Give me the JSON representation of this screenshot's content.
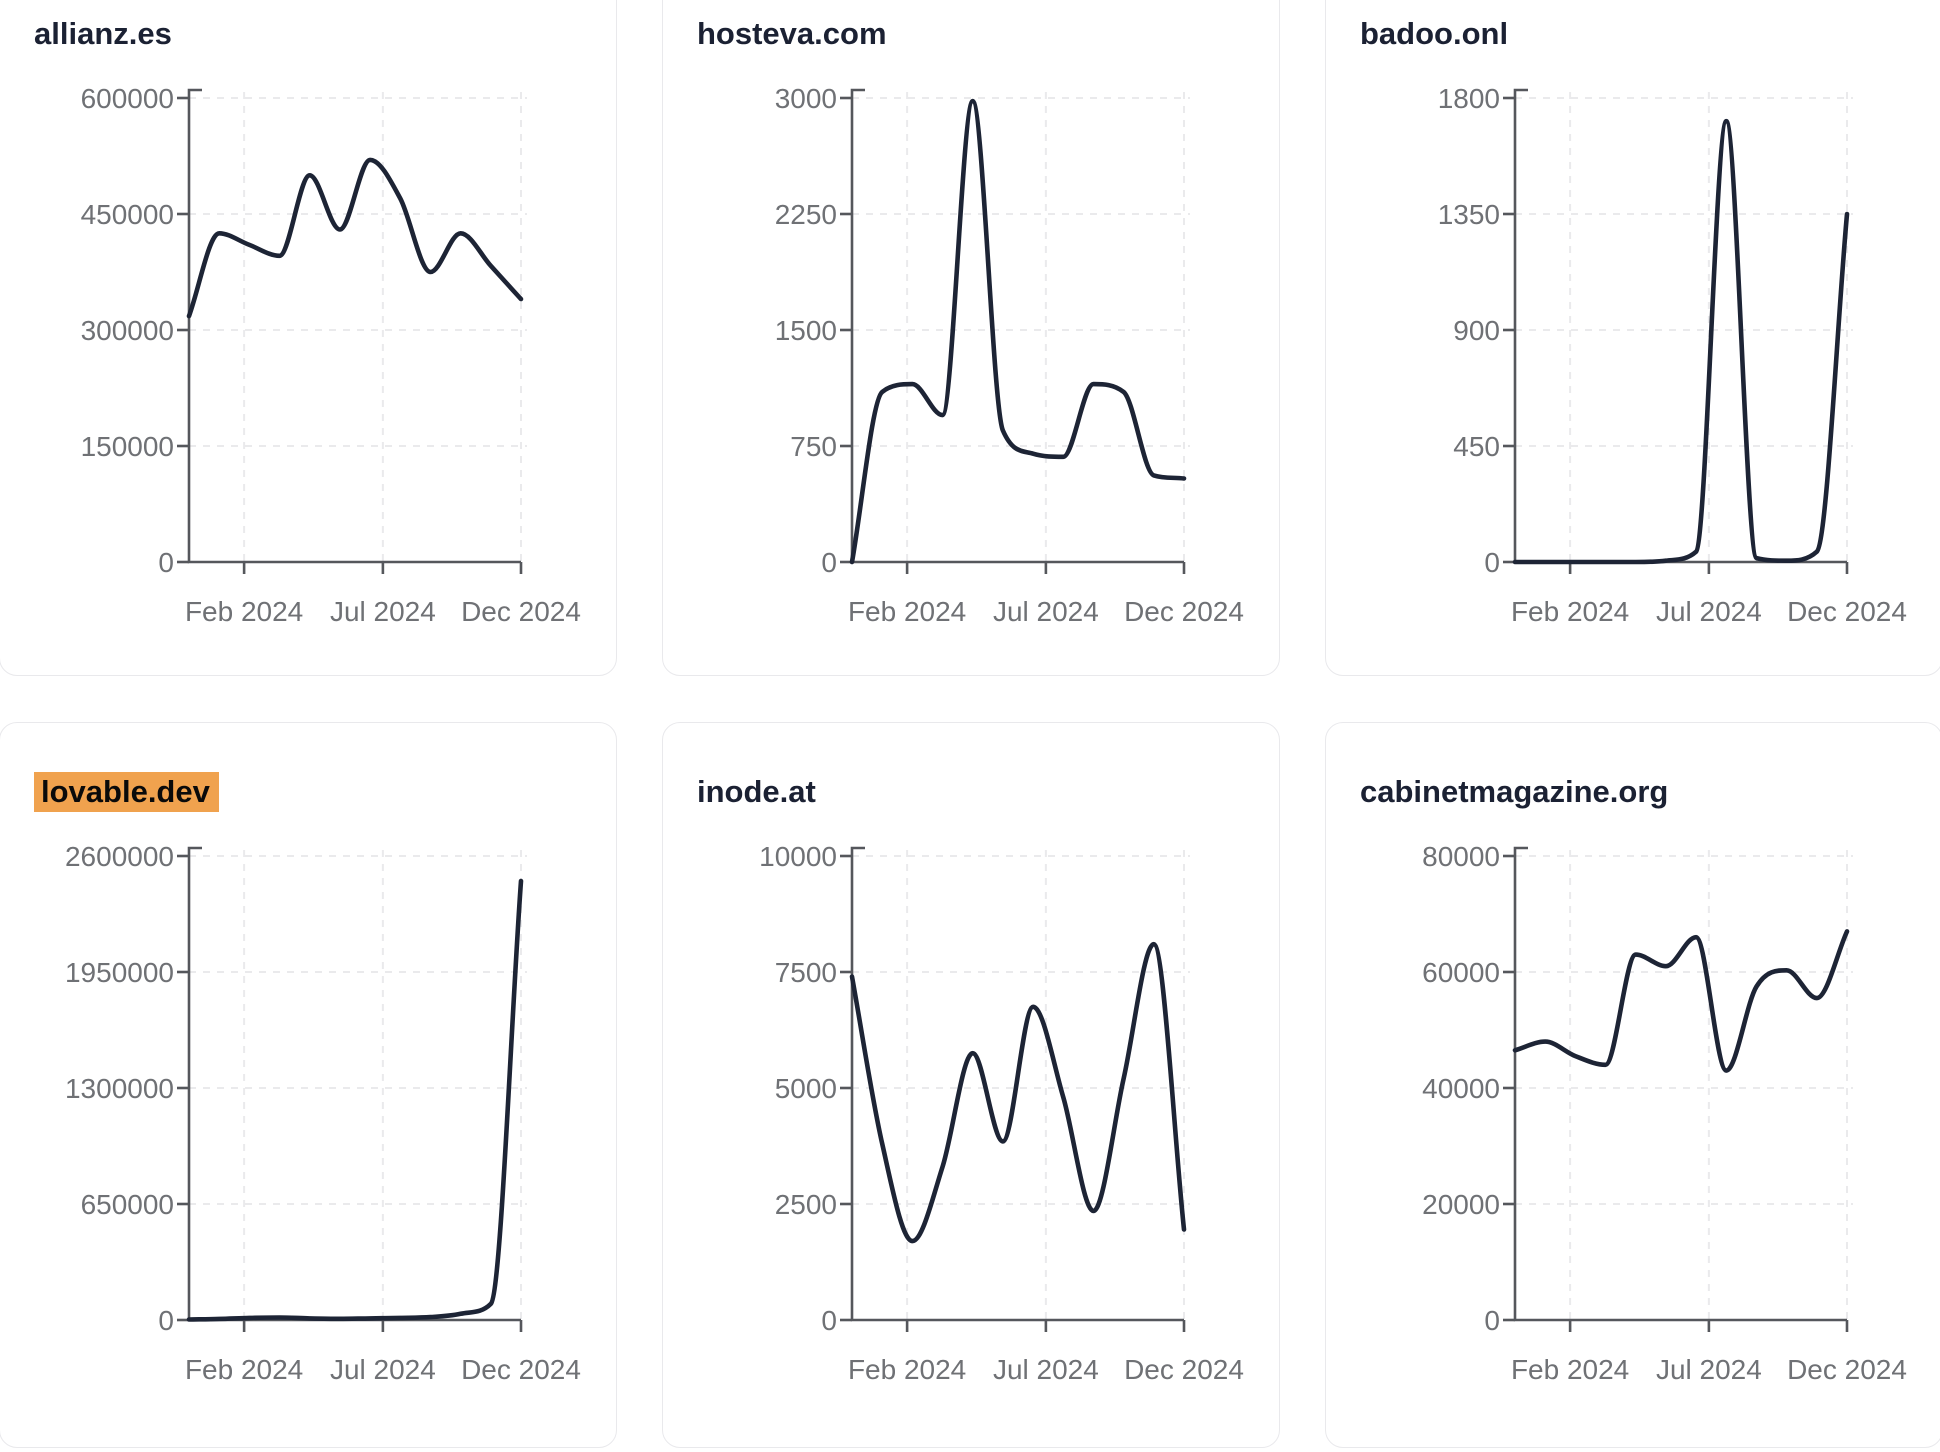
{
  "style": {
    "series_color": "#1d2435",
    "title_color": "#1b2133",
    "highlight_color": "#f0a24e",
    "grid_color": "#eaeaec",
    "axis_color": "#55575c",
    "label_color": "#6f7175",
    "card_background": "#ffffff",
    "card_border": "#e9e9ec"
  },
  "chart_data": [
    {
      "type": "line",
      "title": "allianz.es",
      "title_highlighted": false,
      "xlabel": "",
      "ylabel": "",
      "x": [
        "Jan 2024",
        "Feb 2024",
        "Mar 2024",
        "Apr 2024",
        "May 2024",
        "Jun 2024",
        "Jul 2024",
        "Aug 2024",
        "Sep 2024",
        "Oct 2024",
        "Nov 2024",
        "Dec 2024"
      ],
      "values": [
        318000,
        425000,
        410000,
        396000,
        500000,
        430000,
        520000,
        470000,
        375000,
        425000,
        383000,
        340000
      ],
      "ylim": [
        0,
        600000
      ],
      "yticks": [
        0,
        150000,
        300000,
        450000,
        600000
      ],
      "xtick_labels": [
        "Feb 2024",
        "Jul 2024",
        "Dec 2024"
      ],
      "grid": true,
      "legend": "none"
    },
    {
      "type": "line",
      "title": "hosteva.com",
      "title_highlighted": false,
      "xlabel": "",
      "ylabel": "",
      "x": [
        "Jan 2024",
        "Feb 2024",
        "Mar 2024",
        "Apr 2024",
        "May 2024",
        "Jun 2024",
        "Jul 2024",
        "Aug 2024",
        "Sep 2024",
        "Oct 2024",
        "Nov 2024",
        "Dec 2024"
      ],
      "values": [
        0,
        1100,
        1150,
        950,
        2980,
        850,
        700,
        680,
        1150,
        1100,
        560,
        540
      ],
      "ylim": [
        0,
        3000
      ],
      "yticks": [
        0,
        750,
        1500,
        2250,
        3000
      ],
      "xtick_labels": [
        "Feb 2024",
        "Jul 2024",
        "Dec 2024"
      ],
      "grid": true,
      "legend": "none"
    },
    {
      "type": "line",
      "title": "badoo.onl",
      "title_highlighted": false,
      "xlabel": "",
      "ylabel": "",
      "x": [
        "Jan 2024",
        "Feb 2024",
        "Mar 2024",
        "Apr 2024",
        "May 2024",
        "Jun 2024",
        "Jul 2024",
        "Aug 2024",
        "Sep 2024",
        "Oct 2024",
        "Nov 2024",
        "Dec 2024"
      ],
      "values": [
        0,
        0,
        0,
        0,
        0,
        5,
        40,
        1710,
        15,
        5,
        40,
        1350
      ],
      "ylim": [
        0,
        1800
      ],
      "yticks": [
        0,
        450,
        900,
        1350,
        1800
      ],
      "xtick_labels": [
        "Feb 2024",
        "Jul 2024",
        "Dec 2024"
      ],
      "grid": true,
      "legend": "none"
    },
    {
      "type": "line",
      "title": "lovable.dev",
      "title_highlighted": true,
      "xlabel": "",
      "ylabel": "",
      "x": [
        "Jan 2024",
        "Feb 2024",
        "Mar 2024",
        "Apr 2024",
        "May 2024",
        "Jun 2024",
        "Jul 2024",
        "Aug 2024",
        "Sep 2024",
        "Oct 2024",
        "Nov 2024",
        "Dec 2024"
      ],
      "values": [
        3000,
        6000,
        12000,
        14000,
        9000,
        7000,
        9000,
        12000,
        16000,
        35000,
        90000,
        2460000
      ],
      "ylim": [
        0,
        2600000
      ],
      "yticks": [
        0,
        650000,
        1300000,
        1950000,
        2600000
      ],
      "xtick_labels": [
        "Feb 2024",
        "Jul 2024",
        "Dec 2024"
      ],
      "grid": true,
      "legend": "none"
    },
    {
      "type": "line",
      "title": "inode.at",
      "title_highlighted": false,
      "xlabel": "",
      "ylabel": "",
      "x": [
        "Jan 2024",
        "Feb 2024",
        "Mar 2024",
        "Apr 2024",
        "May 2024",
        "Jun 2024",
        "Jul 2024",
        "Aug 2024",
        "Sep 2024",
        "Oct 2024",
        "Nov 2024",
        "Dec 2024"
      ],
      "values": [
        7400,
        3800,
        1700,
        3300,
        5750,
        3850,
        6750,
        4800,
        2350,
        5200,
        8100,
        1950
      ],
      "ylim": [
        0,
        10000
      ],
      "yticks": [
        0,
        2500,
        5000,
        7500,
        10000
      ],
      "xtick_labels": [
        "Feb 2024",
        "Jul 2024",
        "Dec 2024"
      ],
      "grid": true,
      "legend": "none"
    },
    {
      "type": "line",
      "title": "cabinetmagazine.org",
      "title_highlighted": false,
      "xlabel": "",
      "ylabel": "",
      "x": [
        "Jan 2024",
        "Feb 2024",
        "Mar 2024",
        "Apr 2024",
        "May 2024",
        "Jun 2024",
        "Jul 2024",
        "Aug 2024",
        "Sep 2024",
        "Oct 2024",
        "Nov 2024",
        "Dec 2024"
      ],
      "values": [
        46500,
        48000,
        45500,
        44000,
        63000,
        61000,
        66000,
        43000,
        57500,
        60300,
        55500,
        67000
      ],
      "ylim": [
        0,
        80000
      ],
      "yticks": [
        0,
        20000,
        40000,
        60000,
        80000
      ],
      "xtick_labels": [
        "Feb 2024",
        "Jul 2024",
        "Dec 2024"
      ],
      "grid": true,
      "legend": "none"
    }
  ]
}
